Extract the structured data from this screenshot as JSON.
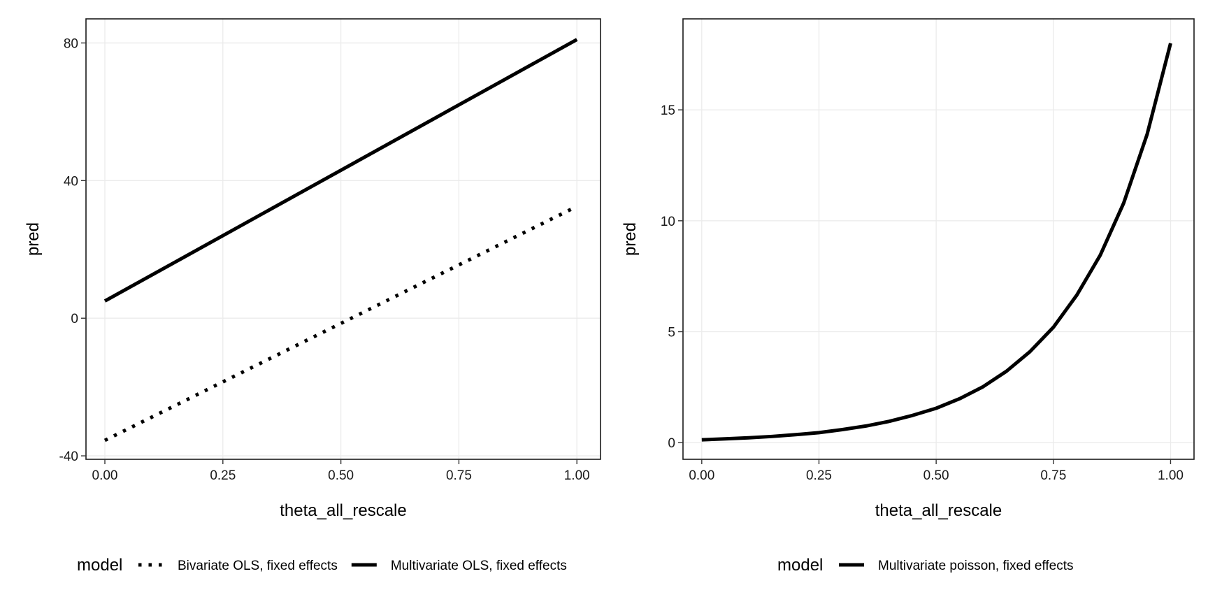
{
  "chart_data": [
    {
      "type": "line",
      "xlabel": "theta_all_rescale",
      "ylabel": "pred",
      "xlim": [
        -0.04,
        1.05
      ],
      "ylim": [
        -41,
        87
      ],
      "x_ticks": [
        0.0,
        0.25,
        0.5,
        0.75,
        1.0
      ],
      "x_tick_labels": [
        "0.00",
        "0.25",
        "0.50",
        "0.75",
        "1.00"
      ],
      "y_ticks": [
        -40,
        0,
        40,
        80
      ],
      "y_tick_labels": [
        "-40",
        "0",
        "40",
        "80"
      ],
      "grid": true,
      "legend_placement": "bottom",
      "legend_title": "model",
      "series": [
        {
          "name": "Bivariate OLS, fixed effects",
          "linetype": "dotted",
          "color": "#000000",
          "x": [
            0.0,
            1.0
          ],
          "y": [
            -35.5,
            32.5
          ]
        },
        {
          "name": "Multivariate OLS, fixed effects",
          "linetype": "solid",
          "color": "#000000",
          "x": [
            0.0,
            1.0
          ],
          "y": [
            5.0,
            81.0
          ]
        }
      ]
    },
    {
      "type": "line",
      "xlabel": "theta_all_rescale",
      "ylabel": "pred",
      "xlim": [
        -0.04,
        1.05
      ],
      "ylim": [
        -0.75,
        19.1
      ],
      "x_ticks": [
        0.0,
        0.25,
        0.5,
        0.75,
        1.0
      ],
      "x_tick_labels": [
        "0.00",
        "0.25",
        "0.50",
        "0.75",
        "1.00"
      ],
      "y_ticks": [
        0,
        5,
        10,
        15
      ],
      "y_tick_labels": [
        "0",
        "5",
        "10",
        "15"
      ],
      "grid": true,
      "legend_placement": "bottom",
      "legend_title": "model",
      "series": [
        {
          "name": "Multivariate poisson, fixed effects",
          "linetype": "solid",
          "color": "#000000",
          "x": [
            0.0,
            0.05,
            0.1,
            0.15,
            0.2,
            0.25,
            0.3,
            0.35,
            0.4,
            0.45,
            0.5,
            0.55,
            0.6,
            0.65,
            0.7,
            0.75,
            0.8,
            0.85,
            0.9,
            0.95,
            1.0
          ],
          "y": [
            0.13,
            0.17,
            0.22,
            0.28,
            0.36,
            0.45,
            0.59,
            0.75,
            0.96,
            1.23,
            1.55,
            1.98,
            2.52,
            3.22,
            4.1,
            5.2,
            6.65,
            8.45,
            10.8,
            13.9,
            18.0
          ]
        }
      ]
    }
  ]
}
